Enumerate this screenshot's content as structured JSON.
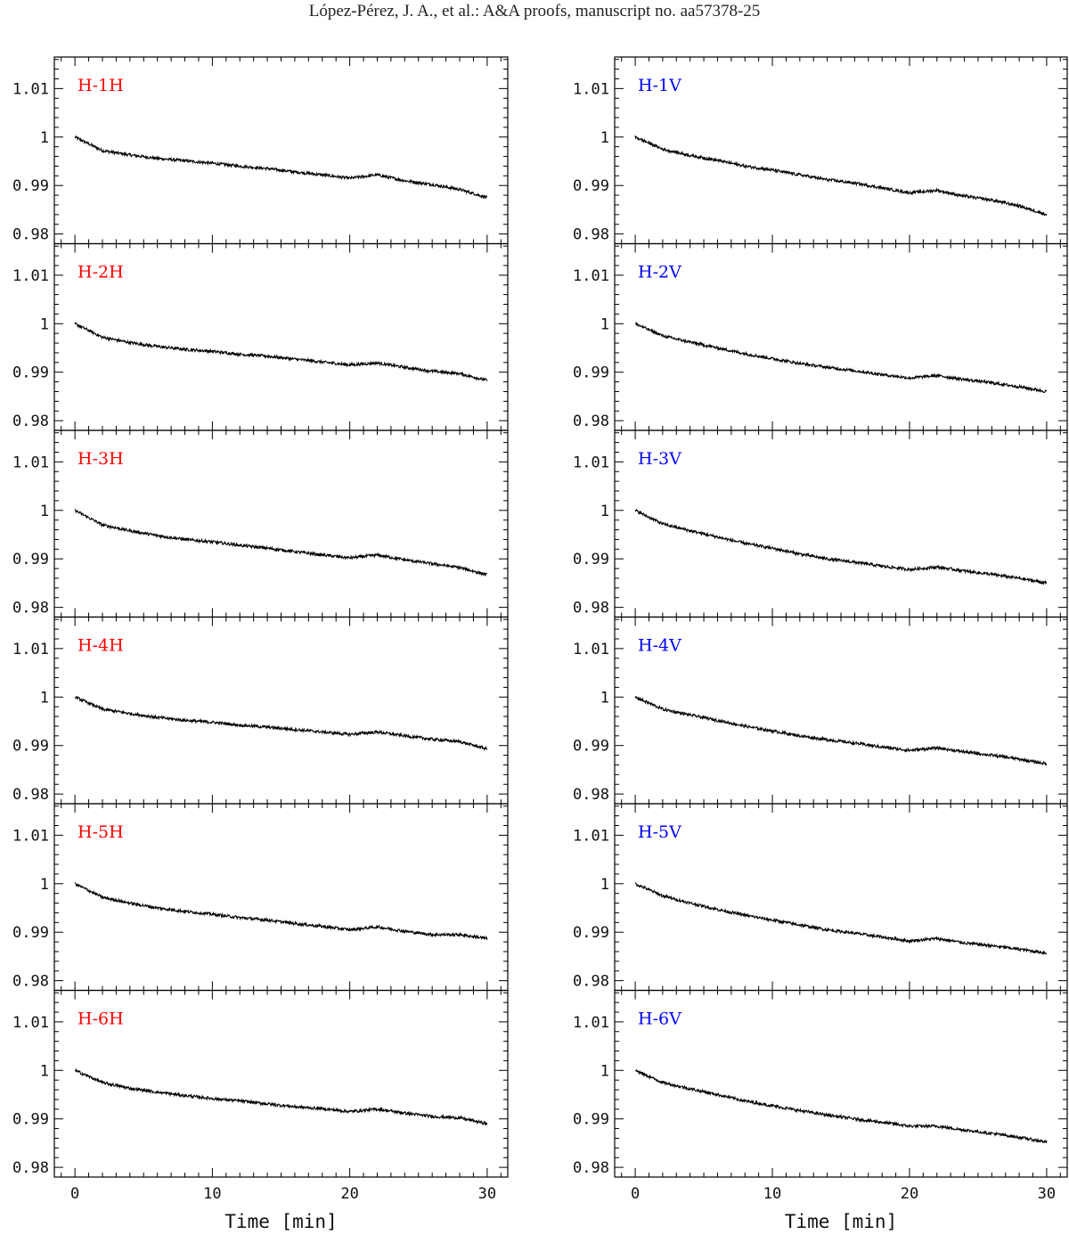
{
  "header": {
    "text": "López-Pérez, J. A., et al.: A&A proofs, manuscript no. aa57378-25"
  },
  "chart_data": {
    "type": "line",
    "xlabel": "Time [min]",
    "xlim": [
      -1.5,
      31.5
    ],
    "ylim": [
      0.978,
      1.0165
    ],
    "x_ticks": [
      0,
      10,
      20,
      30
    ],
    "x_tick_labels": [
      "0",
      "10",
      "20",
      "30"
    ],
    "y_ticks": [
      0.98,
      0.99,
      1.0,
      1.01
    ],
    "y_tick_labels": [
      "0.98",
      "0.99",
      "1",
      "1.01"
    ],
    "x": [
      0,
      2,
      4,
      6,
      8,
      10,
      12,
      14,
      16,
      18,
      20,
      22,
      24,
      26,
      28,
      30
    ],
    "series": [
      {
        "name": "H-1H",
        "color": "#ff0000",
        "column": "left",
        "row": 0,
        "values": [
          1.0,
          0.9972,
          0.9963,
          0.9956,
          0.9951,
          0.9946,
          0.994,
          0.9935,
          0.9928,
          0.9922,
          0.9915,
          0.9922,
          0.991,
          0.9902,
          0.9892,
          0.9875
        ]
      },
      {
        "name": "H-2H",
        "color": "#ff0000",
        "column": "left",
        "row": 1,
        "values": [
          1.0,
          0.9972,
          0.9961,
          0.9953,
          0.9947,
          0.9943,
          0.9937,
          0.9933,
          0.9927,
          0.9921,
          0.9915,
          0.9919,
          0.991,
          0.9902,
          0.9897,
          0.9883
        ]
      },
      {
        "name": "H-3H",
        "color": "#ff0000",
        "column": "left",
        "row": 2,
        "values": [
          1.0,
          0.997,
          0.9958,
          0.9948,
          0.994,
          0.9935,
          0.9928,
          0.9922,
          0.9915,
          0.9908,
          0.9902,
          0.9908,
          0.9898,
          0.989,
          0.9882,
          0.9867
        ]
      },
      {
        "name": "H-4H",
        "color": "#ff0000",
        "column": "left",
        "row": 3,
        "values": [
          1.0,
          0.9975,
          0.9966,
          0.9958,
          0.9952,
          0.9948,
          0.9942,
          0.9938,
          0.9933,
          0.9928,
          0.9923,
          0.9928,
          0.992,
          0.9913,
          0.9908,
          0.9893
        ]
      },
      {
        "name": "H-5H",
        "color": "#ff0000",
        "column": "left",
        "row": 4,
        "values": [
          1.0,
          0.9972,
          0.996,
          0.995,
          0.9943,
          0.9937,
          0.993,
          0.9925,
          0.9918,
          0.9912,
          0.9905,
          0.9911,
          0.9902,
          0.9895,
          0.9895,
          0.9887
        ]
      },
      {
        "name": "H-6H",
        "color": "#ff0000",
        "column": "left",
        "row": 5,
        "values": [
          1.0,
          0.9975,
          0.9963,
          0.9955,
          0.9948,
          0.9942,
          0.9937,
          0.9931,
          0.9925,
          0.9921,
          0.9915,
          0.992,
          0.9912,
          0.9905,
          0.9902,
          0.989
        ]
      },
      {
        "name": "H-1V",
        "color": "#0000ff",
        "column": "right",
        "row": 0,
        "values": [
          1.0,
          0.9975,
          0.9962,
          0.9952,
          0.994,
          0.9932,
          0.9922,
          0.9912,
          0.9905,
          0.9895,
          0.9885,
          0.989,
          0.9878,
          0.987,
          0.9858,
          0.984
        ]
      },
      {
        "name": "H-2V",
        "color": "#0000ff",
        "column": "right",
        "row": 1,
        "values": [
          1.0,
          0.9975,
          0.9962,
          0.995,
          0.9938,
          0.9928,
          0.9918,
          0.991,
          0.9903,
          0.9895,
          0.9888,
          0.9893,
          0.9885,
          0.9878,
          0.987,
          0.986
        ]
      },
      {
        "name": "H-3V",
        "color": "#0000ff",
        "column": "right",
        "row": 2,
        "values": [
          1.0,
          0.9972,
          0.9958,
          0.9945,
          0.9932,
          0.9922,
          0.991,
          0.99,
          0.9893,
          0.9885,
          0.9878,
          0.9883,
          0.9875,
          0.9868,
          0.986,
          0.985
        ]
      },
      {
        "name": "H-4V",
        "color": "#0000ff",
        "column": "right",
        "row": 3,
        "values": [
          1.0,
          0.9975,
          0.9963,
          0.9952,
          0.994,
          0.993,
          0.992,
          0.9912,
          0.9905,
          0.9897,
          0.989,
          0.9895,
          0.9887,
          0.988,
          0.9872,
          0.9862
        ]
      },
      {
        "name": "H-5V",
        "color": "#0000ff",
        "column": "right",
        "row": 4,
        "values": [
          1.0,
          0.9975,
          0.996,
          0.9947,
          0.9935,
          0.9925,
          0.9915,
          0.9905,
          0.9898,
          0.989,
          0.9882,
          0.9887,
          0.9878,
          0.9872,
          0.9865,
          0.9857
        ]
      },
      {
        "name": "H-6V",
        "color": "#0000ff",
        "column": "right",
        "row": 5,
        "values": [
          1.0,
          0.9975,
          0.9962,
          0.995,
          0.9937,
          0.9927,
          0.9917,
          0.9908,
          0.99,
          0.9893,
          0.9885,
          0.9885,
          0.9877,
          0.987,
          0.9862,
          0.9852
        ]
      }
    ]
  }
}
